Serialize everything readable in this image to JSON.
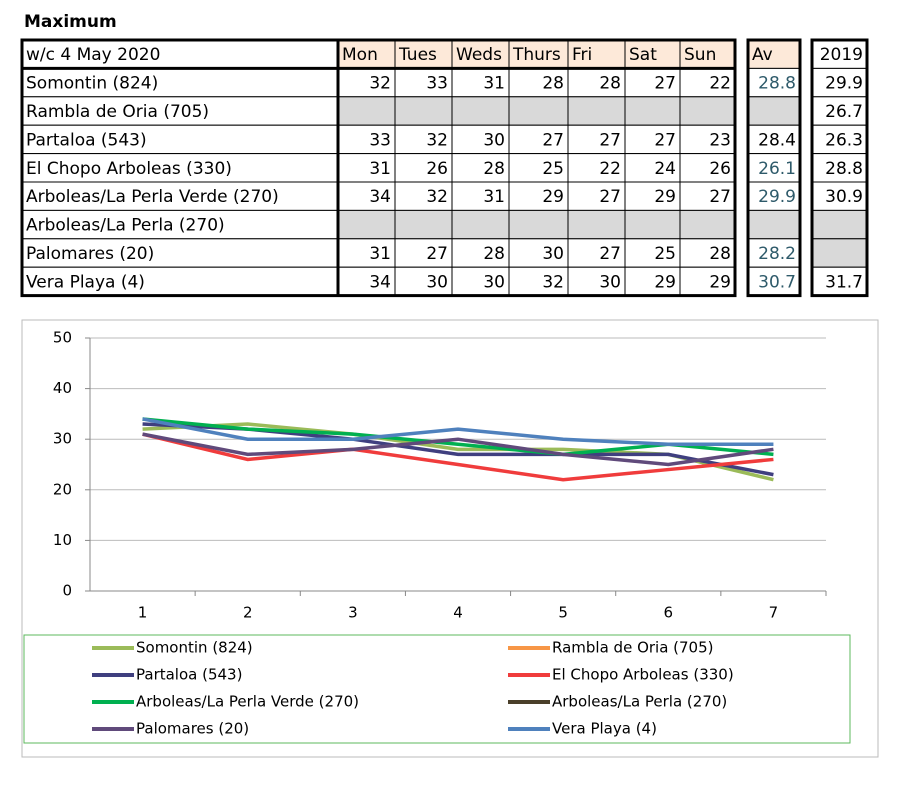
{
  "table": {
    "title": "Maximum",
    "header": [
      "w/c  4 May 2020",
      "Mon",
      "Tues",
      "Weds",
      "Thurs",
      "Fri",
      "Sat",
      "Sun",
      "Av",
      "2019"
    ],
    "av_color": "#2e5a6a",
    "rows": [
      {
        "name": "Somontin (824)",
        "values": [
          32,
          33,
          31,
          28,
          28,
          27,
          22
        ],
        "av": 28.8,
        "av_colored": true,
        "prev": 29.9
      },
      {
        "name": "Rambla de Oria (705)",
        "values": [
          null,
          null,
          null,
          null,
          null,
          null,
          null
        ],
        "av": null,
        "av_colored": false,
        "prev": 26.7
      },
      {
        "name": "Partaloa (543)",
        "values": [
          33,
          32,
          30,
          27,
          27,
          27,
          23
        ],
        "av": 28.4,
        "av_colored": false,
        "prev": 26.3
      },
      {
        "name": "El Chopo  Arboleas (330)",
        "values": [
          31,
          26,
          28,
          25,
          22,
          24,
          26
        ],
        "av": 26.1,
        "av_colored": true,
        "prev": 28.8
      },
      {
        "name": "Arboleas/La Perla Verde (270)",
        "values": [
          34,
          32,
          31,
          29,
          27,
          29,
          27
        ],
        "av": 29.9,
        "av_colored": true,
        "prev": 30.9
      },
      {
        "name": "Arboleas/La Perla (270)",
        "values": [
          null,
          null,
          null,
          null,
          null,
          null,
          null
        ],
        "av": null,
        "av_colored": false,
        "prev": null
      },
      {
        "name": "Palomares (20)",
        "values": [
          31,
          27,
          28,
          30,
          27,
          25,
          28
        ],
        "av": 28.2,
        "av_colored": true,
        "prev": null
      },
      {
        "name": "Vera Playa (4)",
        "values": [
          34,
          30,
          30,
          32,
          30,
          29,
          29
        ],
        "av": 30.7,
        "av_colored": true,
        "prev": 31.7
      }
    ]
  },
  "chart_data": {
    "type": "line",
    "categories": [
      "1",
      "2",
      "3",
      "4",
      "5",
      "6",
      "7"
    ],
    "ylim": [
      0,
      50
    ],
    "yticks": [
      0,
      10,
      20,
      30,
      40,
      50
    ],
    "grid": true,
    "legend": "bottom",
    "series": [
      {
        "name": "Somontin (824)",
        "color": "#9bbb59",
        "values": [
          32,
          33,
          31,
          28,
          28,
          27,
          22
        ]
      },
      {
        "name": "Rambla de Oria (705)",
        "color": "#f79646",
        "values": [
          null,
          null,
          null,
          null,
          null,
          null,
          null
        ]
      },
      {
        "name": "Partaloa (543)",
        "color": "#3f3f7f",
        "values": [
          33,
          32,
          30,
          27,
          27,
          27,
          23
        ]
      },
      {
        "name": "El Chopo  Arboleas (330)",
        "color": "#f03c3c",
        "values": [
          31,
          26,
          28,
          25,
          22,
          24,
          26
        ]
      },
      {
        "name": "Arboleas/La Perla Verde (270)",
        "color": "#00b050",
        "values": [
          34,
          32,
          31,
          29,
          27,
          29,
          27
        ]
      },
      {
        "name": "Arboleas/La Perla (270)",
        "color": "#4a3f2a",
        "values": [
          null,
          null,
          null,
          null,
          null,
          null,
          null
        ]
      },
      {
        "name": "Palomares (20)",
        "color": "#604a7b",
        "values": [
          31,
          27,
          28,
          30,
          27,
          25,
          28
        ]
      },
      {
        "name": "Vera Playa (4)",
        "color": "#4f81bd",
        "values": [
          34,
          30,
          30,
          32,
          30,
          29,
          29
        ]
      }
    ]
  }
}
